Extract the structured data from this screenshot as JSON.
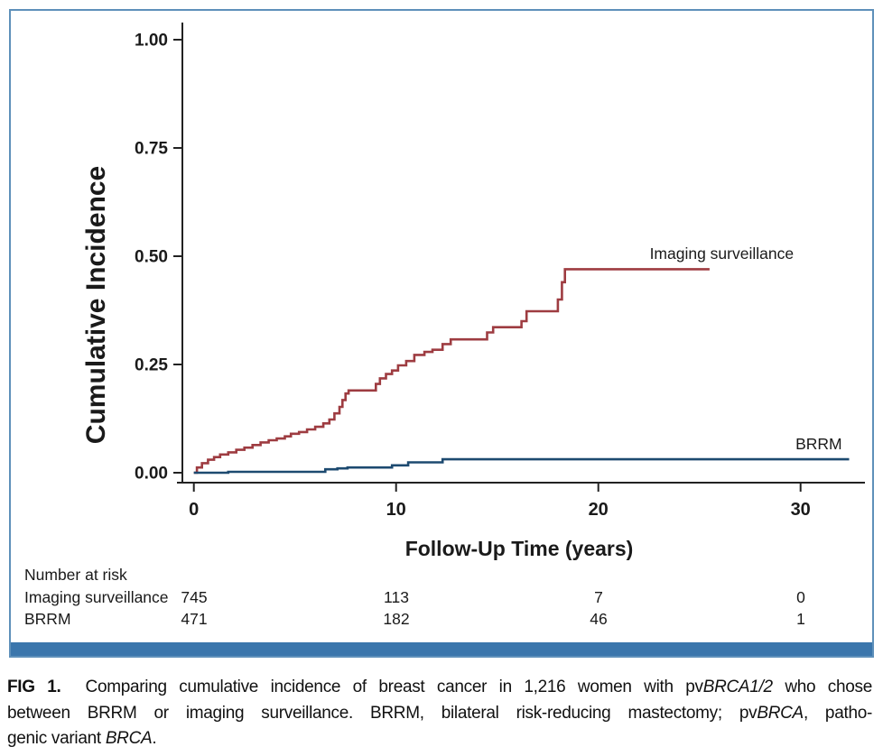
{
  "figure": {
    "border_color": "#5e90ba",
    "bottom_bar_color": "#3b76ac"
  },
  "chart_data": {
    "type": "line",
    "subtype": "cumulative-incidence-step-curves",
    "title": "",
    "xlabel": "Follow-Up Time (years)",
    "ylabel": "Cumulative Incidence",
    "xlim": [
      0,
      33
    ],
    "ylim": [
      0,
      1.0
    ],
    "grid": false,
    "legend_position": "inline-labels-at-curve-ends",
    "xticks": {
      "values": [
        0,
        10,
        20,
        30
      ],
      "labels": [
        "0",
        "10",
        "20",
        "30"
      ]
    },
    "yticks": {
      "values": [
        0,
        0.25,
        0.5,
        0.75,
        1.0
      ],
      "labels": [
        "0.00",
        "0.25",
        "0.50",
        "0.75",
        "1.00"
      ]
    },
    "series": [
      {
        "name": "Imaging surveillance",
        "color": "#9e3c41",
        "end_x": 25.5,
        "label_xy": {
          "x": 26.1,
          "y": 0.506
        },
        "points": [
          [
            0,
            0
          ],
          [
            0.15,
            0.012
          ],
          [
            0.4,
            0.022
          ],
          [
            0.7,
            0.03
          ],
          [
            1.0,
            0.036
          ],
          [
            1.3,
            0.042
          ],
          [
            1.7,
            0.047
          ],
          [
            2.1,
            0.053
          ],
          [
            2.5,
            0.058
          ],
          [
            2.9,
            0.064
          ],
          [
            3.3,
            0.07
          ],
          [
            3.7,
            0.075
          ],
          [
            4.1,
            0.079
          ],
          [
            4.5,
            0.084
          ],
          [
            4.8,
            0.09
          ],
          [
            5.2,
            0.094
          ],
          [
            5.6,
            0.1
          ],
          [
            6.0,
            0.106
          ],
          [
            6.4,
            0.114
          ],
          [
            6.7,
            0.123
          ],
          [
            6.95,
            0.137
          ],
          [
            7.2,
            0.152
          ],
          [
            7.35,
            0.168
          ],
          [
            7.5,
            0.183
          ],
          [
            7.65,
            0.19
          ],
          [
            9.0,
            0.205
          ],
          [
            9.2,
            0.218
          ],
          [
            9.5,
            0.228
          ],
          [
            9.8,
            0.236
          ],
          [
            10.1,
            0.248
          ],
          [
            10.5,
            0.258
          ],
          [
            10.9,
            0.272
          ],
          [
            11.4,
            0.279
          ],
          [
            11.8,
            0.284
          ],
          [
            12.3,
            0.297
          ],
          [
            12.7,
            0.308
          ],
          [
            14.5,
            0.324
          ],
          [
            14.8,
            0.336
          ],
          [
            16.2,
            0.35
          ],
          [
            16.45,
            0.373
          ],
          [
            18.0,
            0.4
          ],
          [
            18.2,
            0.44
          ],
          [
            18.35,
            0.47
          ]
        ]
      },
      {
        "name": "BRRM",
        "color": "#1d4a70",
        "end_x": 32.4,
        "label_xy": {
          "x": 30.9,
          "y": 0.067
        },
        "points": [
          [
            0,
            0
          ],
          [
            1.7,
            0.002
          ],
          [
            6.5,
            0.008
          ],
          [
            7.1,
            0.01
          ],
          [
            7.6,
            0.012
          ],
          [
            9.8,
            0.017
          ],
          [
            10.6,
            0.024
          ],
          [
            12.3,
            0.031
          ]
        ]
      }
    ]
  },
  "risk_table": {
    "title": "Number at risk",
    "time_points": [
      0,
      10,
      20,
      30
    ],
    "rows": [
      {
        "label": "Imaging surveillance",
        "counts": [
          "745",
          "113",
          "7",
          "0"
        ]
      },
      {
        "label": "BRRM",
        "counts": [
          "471",
          "182",
          "46",
          "1"
        ]
      }
    ]
  },
  "caption": {
    "lines": [
      [
        {
          "t": "FIG 1.",
          "b": true
        },
        {
          "t": "  Comparing cumulative incidence of breast cancer in 1,216 women with pv"
        },
        {
          "t": "BRCA1/2",
          "i": true
        },
        {
          "t": " who chose"
        }
      ],
      [
        {
          "t": "between BRRM or imaging surveillance. BRRM, bilateral risk-reducing mastectomy; pv"
        },
        {
          "t": "BRCA",
          "i": true
        },
        {
          "t": ", patho-"
        }
      ],
      [
        {
          "t": "genic variant "
        },
        {
          "t": "BRCA",
          "i": true
        },
        {
          "t": "."
        }
      ]
    ]
  }
}
